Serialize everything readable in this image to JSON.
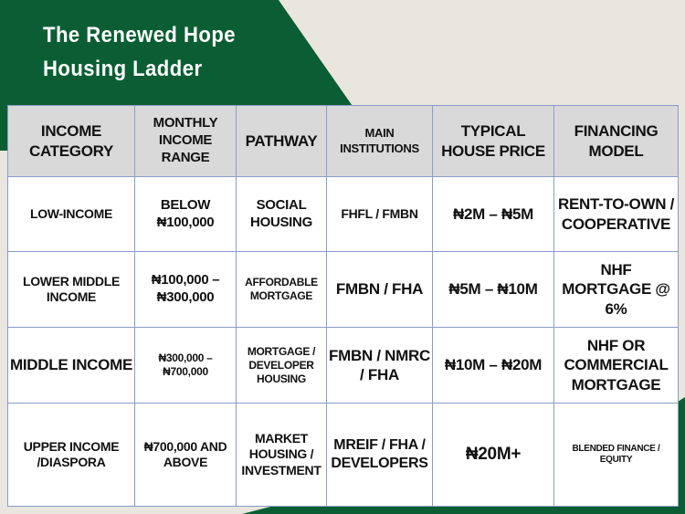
{
  "title_lines": [
    "The Renewed Hope",
    "Housing Ladder"
  ],
  "colors": {
    "green": "#0b5e33",
    "background": "#e8e6df",
    "header": "#d9d9d9",
    "grid": "#8a9cc8"
  },
  "table": {
    "headers": [
      "Income Category",
      "Monthly Income Range",
      "Pathway",
      "Main Institutions",
      "Typical House Price",
      "Financing Model"
    ],
    "rows": [
      [
        "Low-Income",
        "Below ₦100,000",
        "Social Housing",
        "FHFL / FMBN",
        "₦2M – ₦5M",
        "Rent-to-Own / Cooperative"
      ],
      [
        "Lower Middle Income",
        "₦100,000 – ₦300,000",
        "Affordable Mortgage",
        "FMBN / FHA",
        "₦5M – ₦10M",
        "NHF Mortgage @ 6%"
      ],
      [
        "Middle Income",
        "₦300,000 – ₦700,000",
        "Mortgage / Developer Housing",
        "FMBN / NMRC / FHA",
        "₦10M – ₦20M",
        "NHF or Commercial Mortgage"
      ],
      [
        "Upper Income /Diaspora",
        "₦700,000 and Above",
        "Market Housing / Investment",
        "MREIF / FHA / Developers",
        "₦20M+",
        "Blended Finance / Equity"
      ]
    ]
  }
}
